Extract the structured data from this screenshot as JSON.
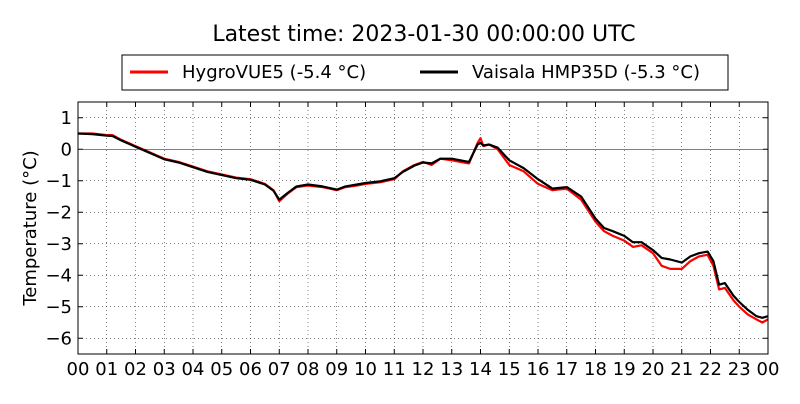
{
  "chart_data": {
    "type": "line",
    "title": "Latest time: 2023-01-30 00:00:00 UTC",
    "xlabel": "",
    "ylabel": "Temperature (°C)",
    "xlim": [
      0,
      24
    ],
    "ylim": [
      -6.5,
      1.5
    ],
    "x_ticks": [
      0,
      1,
      2,
      3,
      4,
      5,
      6,
      7,
      8,
      9,
      10,
      11,
      12,
      13,
      14,
      15,
      16,
      17,
      18,
      19,
      20,
      21,
      22,
      23,
      24
    ],
    "x_tick_labels": [
      "00",
      "01",
      "02",
      "03",
      "04",
      "05",
      "06",
      "07",
      "08",
      "09",
      "10",
      "11",
      "12",
      "13",
      "14",
      "15",
      "16",
      "17",
      "18",
      "19",
      "20",
      "21",
      "22",
      "23",
      "00"
    ],
    "y_ticks": [
      1,
      0,
      -1,
      -2,
      -3,
      -4,
      -5,
      -6
    ],
    "y_tick_labels": [
      "1",
      "0",
      "−1",
      "−2",
      "−3",
      "−4",
      "−5",
      "−6"
    ],
    "grid": true,
    "zero_line": true,
    "legend_position": "top",
    "series": [
      {
        "name": "HygroVUE5 (-5.4 °C)",
        "color": "#ff0000",
        "x": [
          0,
          0.5,
          1,
          1.2,
          1.5,
          2,
          2.5,
          3,
          3.5,
          4,
          4.5,
          5,
          5.5,
          6,
          6.5,
          6.8,
          7,
          7.3,
          7.6,
          8,
          8.5,
          9,
          9.3,
          9.7,
          10,
          10.5,
          11,
          11.3,
          11.7,
          12,
          12.3,
          12.6,
          13,
          13.3,
          13.6,
          13.9,
          14,
          14.1,
          14.3,
          14.6,
          15,
          15.5,
          16,
          16.5,
          17,
          17.5,
          18,
          18.3,
          18.6,
          19,
          19.3,
          19.6,
          20,
          20.3,
          20.6,
          21,
          21.3,
          21.6,
          21.9,
          22.1,
          22.3,
          22.5,
          22.8,
          23,
          23.3,
          23.6,
          23.8,
          24
        ],
        "values": [
          0.5,
          0.5,
          0.45,
          0.45,
          0.3,
          0.1,
          -0.1,
          -0.3,
          -0.4,
          -0.55,
          -0.7,
          -0.8,
          -0.9,
          -0.95,
          -1.1,
          -1.3,
          -1.65,
          -1.4,
          -1.2,
          -1.15,
          -1.2,
          -1.3,
          -1.2,
          -1.15,
          -1.1,
          -1.05,
          -0.95,
          -0.7,
          -0.5,
          -0.4,
          -0.5,
          -0.3,
          -0.35,
          -0.4,
          -0.45,
          0.2,
          0.35,
          0.1,
          0.15,
          0.0,
          -0.5,
          -0.7,
          -1.1,
          -1.3,
          -1.25,
          -1.6,
          -2.3,
          -2.6,
          -2.75,
          -2.9,
          -3.1,
          -3.05,
          -3.3,
          -3.7,
          -3.8,
          -3.8,
          -3.55,
          -3.4,
          -3.35,
          -3.7,
          -4.45,
          -4.4,
          -4.8,
          -5.0,
          -5.25,
          -5.4,
          -5.5,
          -5.4
        ]
      },
      {
        "name": "Vaisala HMP35D (-5.3 °C)",
        "color": "#000000",
        "x": [
          0,
          0.5,
          1,
          1.2,
          1.5,
          2,
          2.5,
          3,
          3.5,
          4,
          4.5,
          5,
          5.5,
          6,
          6.5,
          6.8,
          7,
          7.3,
          7.6,
          8,
          8.5,
          9,
          9.3,
          9.7,
          10,
          10.5,
          11,
          11.3,
          11.7,
          12,
          12.3,
          12.6,
          13,
          13.3,
          13.6,
          13.9,
          14,
          14.1,
          14.3,
          14.6,
          15,
          15.5,
          16,
          16.5,
          17,
          17.5,
          18,
          18.3,
          18.6,
          19,
          19.3,
          19.6,
          20,
          20.3,
          20.6,
          21,
          21.3,
          21.6,
          21.9,
          22.1,
          22.3,
          22.5,
          22.8,
          23,
          23.3,
          23.6,
          23.8,
          24
        ],
        "values": [
          0.5,
          0.48,
          0.43,
          0.42,
          0.28,
          0.08,
          -0.12,
          -0.32,
          -0.42,
          -0.57,
          -0.72,
          -0.82,
          -0.92,
          -0.97,
          -1.12,
          -1.32,
          -1.6,
          -1.38,
          -1.18,
          -1.12,
          -1.18,
          -1.28,
          -1.18,
          -1.12,
          -1.07,
          -1.02,
          -0.92,
          -0.72,
          -0.52,
          -0.42,
          -0.45,
          -0.3,
          -0.3,
          -0.35,
          -0.4,
          0.15,
          0.2,
          0.12,
          0.15,
          0.05,
          -0.35,
          -0.6,
          -0.95,
          -1.25,
          -1.2,
          -1.5,
          -2.2,
          -2.5,
          -2.6,
          -2.75,
          -2.95,
          -2.95,
          -3.2,
          -3.45,
          -3.5,
          -3.6,
          -3.4,
          -3.3,
          -3.25,
          -3.55,
          -4.3,
          -4.25,
          -4.65,
          -4.85,
          -5.1,
          -5.3,
          -5.35,
          -5.3
        ]
      }
    ]
  }
}
